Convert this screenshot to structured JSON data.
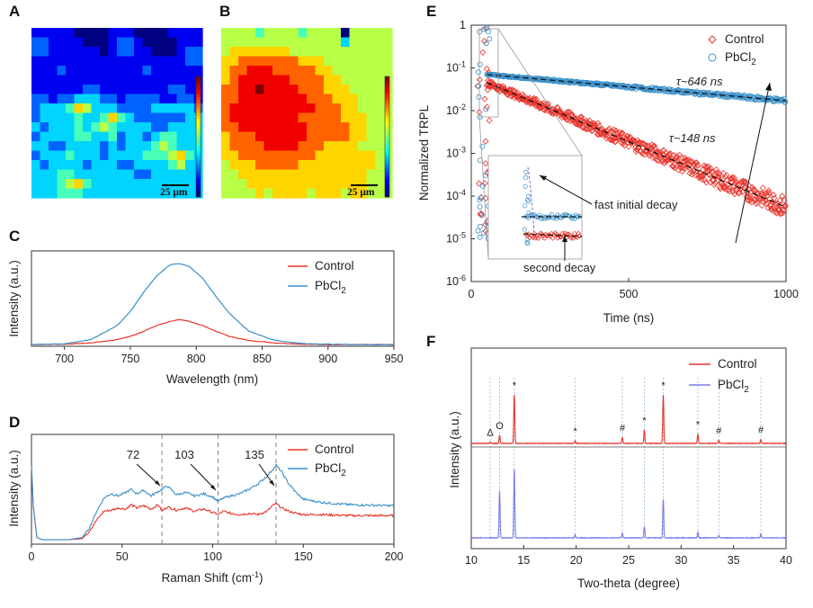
{
  "chart_data": [
    {
      "panel": "A",
      "type": "heatmap",
      "scale_bar": "25 μm",
      "colormap": "jet",
      "rows": [
        [
          1,
          1,
          1,
          1,
          1,
          0,
          0,
          0,
          0,
          1,
          1,
          1,
          0,
          0,
          0,
          0,
          1,
          1,
          1,
          1
        ],
        [
          2,
          2,
          1,
          1,
          1,
          1,
          0,
          0,
          0,
          1,
          2,
          2,
          1,
          0,
          0,
          0,
          0,
          1,
          1,
          1
        ],
        [
          2,
          2,
          1,
          1,
          1,
          1,
          1,
          1,
          0,
          1,
          2,
          2,
          1,
          1,
          0,
          0,
          0,
          1,
          2,
          2
        ],
        [
          1,
          1,
          1,
          1,
          1,
          1,
          1,
          1,
          1,
          1,
          1,
          1,
          1,
          1,
          1,
          1,
          1,
          1,
          2,
          2
        ],
        [
          1,
          1,
          1,
          2,
          1,
          1,
          1,
          1,
          1,
          1,
          1,
          1,
          1,
          2,
          1,
          1,
          1,
          1,
          1,
          1
        ],
        [
          1,
          1,
          1,
          1,
          1,
          1,
          1,
          1,
          1,
          1,
          1,
          1,
          1,
          1,
          1,
          1,
          1,
          1,
          1,
          1
        ],
        [
          1,
          1,
          1,
          1,
          1,
          1,
          2,
          2,
          1,
          1,
          1,
          1,
          1,
          1,
          1,
          1,
          2,
          2,
          1,
          1
        ],
        [
          2,
          2,
          1,
          2,
          2,
          3,
          3,
          3,
          2,
          2,
          1,
          2,
          2,
          2,
          2,
          1,
          1,
          2,
          2,
          1
        ],
        [
          2,
          3,
          3,
          3,
          4,
          6,
          5,
          3,
          3,
          3,
          2,
          2,
          2,
          2,
          3,
          3,
          3,
          3,
          3,
          2
        ],
        [
          2,
          3,
          3,
          3,
          3,
          4,
          3,
          3,
          4,
          6,
          4,
          3,
          2,
          2,
          2,
          2,
          2,
          2,
          3,
          3
        ],
        [
          3,
          2,
          3,
          3,
          3,
          4,
          3,
          4,
          5,
          4,
          3,
          3,
          3,
          3,
          2,
          2,
          3,
          3,
          3,
          3
        ],
        [
          2,
          3,
          3,
          3,
          3,
          4,
          4,
          3,
          3,
          4,
          2,
          3,
          3,
          2,
          3,
          4,
          4,
          3,
          3,
          3
        ],
        [
          3,
          3,
          2,
          2,
          3,
          3,
          3,
          3,
          2,
          3,
          2,
          3,
          3,
          3,
          4,
          5,
          4,
          3,
          3,
          3
        ],
        [
          2,
          3,
          3,
          3,
          4,
          3,
          3,
          3,
          2,
          3,
          3,
          3,
          3,
          4,
          4,
          4,
          5,
          6,
          4,
          3
        ],
        [
          3,
          2,
          3,
          3,
          3,
          3,
          2,
          3,
          3,
          3,
          2,
          2,
          3,
          3,
          3,
          3,
          4,
          5,
          3,
          3
        ],
        [
          3,
          3,
          3,
          4,
          4,
          3,
          3,
          3,
          3,
          3,
          3,
          3,
          2,
          2,
          3,
          3,
          3,
          3,
          3,
          3
        ],
        [
          3,
          3,
          3,
          4,
          5,
          6,
          4,
          3,
          3,
          3,
          3,
          3,
          3,
          3,
          3,
          3,
          3,
          3,
          3,
          3
        ],
        [
          3,
          3,
          3,
          4,
          4,
          4,
          3,
          3,
          3,
          3,
          3,
          3,
          3,
          3,
          3,
          3,
          3,
          3,
          3,
          3
        ]
      ]
    },
    {
      "panel": "B",
      "type": "heatmap",
      "scale_bar": "25 μm",
      "colormap": "jet",
      "rows": [
        [
          5,
          5,
          5,
          5,
          4,
          5,
          5,
          5,
          5,
          4,
          5,
          5,
          5,
          5,
          0,
          5,
          5,
          5,
          5,
          5
        ],
        [
          5,
          5,
          5,
          5,
          5,
          5,
          5,
          5,
          5,
          5,
          5,
          5,
          5,
          5,
          3,
          5,
          5,
          5,
          5,
          5
        ],
        [
          5,
          6,
          6,
          6,
          6,
          6,
          6,
          6,
          5,
          5,
          5,
          5,
          5,
          5,
          5,
          5,
          5,
          5,
          5,
          5
        ],
        [
          6,
          6,
          7,
          7,
          7,
          7,
          7,
          7,
          7,
          6,
          6,
          6,
          5,
          5,
          5,
          5,
          5,
          5,
          5,
          5
        ],
        [
          6,
          7,
          7,
          8,
          8,
          8,
          7,
          7,
          7,
          7,
          7,
          6,
          6,
          5,
          5,
          5,
          5,
          5,
          5,
          5
        ],
        [
          6,
          7,
          8,
          8,
          8,
          8,
          8,
          8,
          7,
          7,
          7,
          7,
          6,
          6,
          5,
          5,
          5,
          5,
          5,
          5
        ],
        [
          7,
          7,
          8,
          8,
          9,
          8,
          8,
          8,
          8,
          7,
          7,
          7,
          6,
          6,
          6,
          5,
          5,
          5,
          5,
          5
        ],
        [
          7,
          7,
          8,
          8,
          8,
          8,
          8,
          8,
          8,
          8,
          7,
          7,
          7,
          6,
          6,
          6,
          5,
          5,
          5,
          5
        ],
        [
          7,
          8,
          8,
          8,
          8,
          8,
          8,
          8,
          8,
          8,
          8,
          7,
          7,
          7,
          6,
          6,
          5,
          5,
          5,
          5
        ],
        [
          7,
          8,
          8,
          8,
          8,
          8,
          8,
          8,
          8,
          7,
          7,
          7,
          7,
          7,
          6,
          6,
          6,
          5,
          5,
          5
        ],
        [
          7,
          7,
          8,
          8,
          8,
          8,
          8,
          8,
          8,
          8,
          7,
          7,
          7,
          7,
          7,
          6,
          6,
          5,
          5,
          5
        ],
        [
          6,
          7,
          7,
          7,
          8,
          8,
          8,
          8,
          8,
          8,
          7,
          7,
          7,
          7,
          7,
          6,
          6,
          5,
          5,
          5
        ],
        [
          6,
          7,
          7,
          7,
          7,
          8,
          8,
          8,
          8,
          7,
          7,
          7,
          6,
          6,
          6,
          6,
          5,
          5,
          5,
          5
        ],
        [
          6,
          6,
          7,
          7,
          7,
          7,
          7,
          7,
          7,
          7,
          7,
          6,
          6,
          6,
          6,
          6,
          6,
          6,
          5,
          5
        ],
        [
          5,
          6,
          6,
          6,
          7,
          7,
          7,
          7,
          7,
          6,
          6,
          6,
          6,
          6,
          6,
          6,
          6,
          6,
          5,
          5
        ],
        [
          5,
          5,
          6,
          6,
          6,
          6,
          6,
          6,
          6,
          6,
          6,
          6,
          6,
          6,
          6,
          6,
          6,
          5,
          5,
          5
        ],
        [
          5,
          5,
          5,
          6,
          6,
          6,
          6,
          6,
          6,
          6,
          6,
          6,
          6,
          6,
          6,
          6,
          6,
          5,
          5,
          5
        ],
        [
          5,
          5,
          5,
          5,
          6,
          5,
          6,
          6,
          6,
          6,
          5,
          6,
          6,
          6,
          5,
          6,
          6,
          5,
          5,
          5
        ]
      ]
    },
    {
      "panel": "C",
      "type": "line",
      "xlabel": "Wavelength (nm)",
      "ylabel": "Intensity (a.u.)",
      "xlim": [
        675,
        950
      ],
      "ylim": [
        0,
        1.15
      ],
      "xticks": [
        700,
        750,
        800,
        850,
        900,
        950
      ],
      "series": [
        {
          "name": "Control",
          "color": "#e8332a",
          "x": [
            675,
            700,
            720,
            740,
            750,
            760,
            770,
            780,
            787,
            795,
            805,
            815,
            825,
            840,
            860,
            880,
            900,
            925,
            950
          ],
          "y": [
            0.02,
            0.025,
            0.04,
            0.08,
            0.12,
            0.18,
            0.25,
            0.3,
            0.32,
            0.3,
            0.25,
            0.18,
            0.12,
            0.07,
            0.04,
            0.025,
            0.02,
            0.02,
            0.02
          ]
        },
        {
          "name": "PbCl2",
          "color": "#3b8fc9",
          "x": [
            675,
            700,
            720,
            740,
            750,
            760,
            770,
            780,
            787,
            795,
            805,
            815,
            825,
            840,
            860,
            880,
            900,
            925,
            950
          ],
          "y": [
            0.02,
            0.03,
            0.08,
            0.25,
            0.42,
            0.65,
            0.85,
            0.98,
            1.0,
            0.96,
            0.82,
            0.6,
            0.4,
            0.18,
            0.07,
            0.035,
            0.025,
            0.02,
            0.02
          ]
        }
      ]
    },
    {
      "panel": "D",
      "type": "line",
      "xlabel": "Raman Shift (cm",
      "xlabel_sup": "-1",
      "xlabel_tail": ")",
      "ylabel": "Intensity (a.u.)",
      "xlim": [
        0,
        200
      ],
      "ylim": [
        0,
        1.0
      ],
      "xticks": [
        0,
        50,
        100,
        150,
        200
      ],
      "annotations": [
        {
          "label": "72",
          "x": 72
        },
        {
          "label": "103",
          "x": 103
        },
        {
          "label": "135",
          "x": 135
        }
      ],
      "series": [
        {
          "name": "Control",
          "color": "#e8332a",
          "x": [
            0,
            1,
            3,
            6,
            10,
            20,
            28,
            32,
            36,
            40,
            44,
            48,
            52,
            55,
            58,
            62,
            66,
            70,
            72,
            75,
            80,
            85,
            90,
            95,
            100,
            103,
            106,
            110,
            115,
            120,
            125,
            130,
            133,
            135,
            138,
            142,
            146,
            150,
            160,
            175,
            200
          ],
          "y": [
            0.72,
            0.35,
            0.06,
            0.04,
            0.04,
            0.04,
            0.05,
            0.12,
            0.22,
            0.3,
            0.31,
            0.33,
            0.32,
            0.36,
            0.33,
            0.35,
            0.32,
            0.36,
            0.3,
            0.34,
            0.31,
            0.33,
            0.3,
            0.32,
            0.29,
            0.27,
            0.3,
            0.28,
            0.27,
            0.28,
            0.27,
            0.3,
            0.35,
            0.37,
            0.33,
            0.3,
            0.28,
            0.27,
            0.27,
            0.26,
            0.26
          ]
        },
        {
          "name": "PbCl2",
          "color": "#3b8fc9",
          "x": [
            0,
            1,
            3,
            6,
            10,
            20,
            28,
            32,
            36,
            40,
            44,
            48,
            52,
            55,
            58,
            62,
            66,
            70,
            72,
            75,
            80,
            85,
            90,
            95,
            100,
            103,
            106,
            110,
            115,
            120,
            125,
            130,
            133,
            135,
            138,
            142,
            146,
            150,
            160,
            175,
            200
          ],
          "y": [
            0.72,
            0.35,
            0.06,
            0.04,
            0.04,
            0.04,
            0.06,
            0.15,
            0.3,
            0.42,
            0.46,
            0.44,
            0.47,
            0.5,
            0.46,
            0.49,
            0.44,
            0.48,
            0.5,
            0.53,
            0.45,
            0.47,
            0.44,
            0.46,
            0.43,
            0.39,
            0.42,
            0.44,
            0.46,
            0.5,
            0.55,
            0.62,
            0.68,
            0.72,
            0.66,
            0.55,
            0.47,
            0.41,
            0.38,
            0.36,
            0.35
          ]
        }
      ]
    },
    {
      "panel": "E",
      "type": "scatter",
      "xlabel": "Time (ns)",
      "ylabel": "Normalized TRPL",
      "xlim": [
        0,
        1000
      ],
      "ylim": [
        1e-06,
        1
      ],
      "yscale": "log",
      "xticks": [
        0,
        500,
        1000
      ],
      "series": [
        {
          "name": "Control",
          "marker": "diamond",
          "color": "#e8332a",
          "lifetime_ns": 148,
          "start": [
            50,
            0.045
          ],
          "end": [
            1000,
            5.5e-05
          ]
        },
        {
          "name": "PbCl2",
          "marker": "circle",
          "color": "#3b8fc9",
          "lifetime_ns": 646,
          "start": [
            50,
            0.07
          ],
          "end": [
            1000,
            0.017
          ]
        }
      ],
      "annotations": [
        {
          "text": "τ~646 ns",
          "x": 680,
          "y": 0.075
        },
        {
          "text": "τ~148 ns",
          "x": 680,
          "y": 0.0022
        },
        {
          "text": "fast initial decay"
        },
        {
          "text": "second decay"
        }
      ]
    },
    {
      "panel": "F",
      "type": "line",
      "xlabel": "Two-theta (degree)",
      "ylabel": "Intensity (a.u.)",
      "xlim": [
        10,
        40
      ],
      "xticks": [
        10,
        15,
        20,
        25,
        30,
        35,
        40
      ],
      "peaks_control": [
        [
          11.8,
          0.02,
          "Δ"
        ],
        [
          12.7,
          0.12,
          "O"
        ],
        [
          14.1,
          0.72,
          "*"
        ],
        [
          19.9,
          0.04,
          "*"
        ],
        [
          24.4,
          0.09,
          "#"
        ],
        [
          26.5,
          0.2,
          "*"
        ],
        [
          28.3,
          0.72,
          "*"
        ],
        [
          31.6,
          0.14,
          "*"
        ],
        [
          33.6,
          0.05,
          "#"
        ],
        [
          37.6,
          0.06,
          "#"
        ]
      ],
      "peaks_pbcl2": [
        [
          12.7,
          0.58
        ],
        [
          14.1,
          0.85
        ],
        [
          19.9,
          0.04
        ],
        [
          24.4,
          0.06
        ],
        [
          26.5,
          0.14
        ],
        [
          28.3,
          0.48
        ],
        [
          31.6,
          0.07
        ],
        [
          33.6,
          0.03
        ],
        [
          37.6,
          0.05
        ]
      ],
      "series": [
        {
          "name": "Control",
          "color": "#e8332a"
        },
        {
          "name": "PbCl2",
          "color": "#7b7bec"
        }
      ]
    }
  ],
  "panels": {
    "A": {
      "label": "A",
      "scale": "25 μm"
    },
    "B": {
      "label": "B",
      "scale": "25 μm"
    },
    "C": {
      "label": "C",
      "xlabel": "Wavelength (nm)",
      "ylabel": "Intensity (a.u.)"
    },
    "D": {
      "label": "D",
      "ylabel": "Intensity (a.u.)"
    },
    "E": {
      "label": "E",
      "xlabel": "Time (ns)",
      "ylabel": "Normalized TRPL",
      "tau1": "τ~646 ns",
      "tau2": "τ~148 ns",
      "fast": "fast initial decay",
      "second": "second decay"
    },
    "F": {
      "label": "F",
      "xlabel": "Two-theta (degree)",
      "ylabel": "Intensity (a.u.)"
    }
  },
  "legend": {
    "control": "Control",
    "pbcl2_base": "PbCl",
    "pbcl2_sub": "2"
  }
}
